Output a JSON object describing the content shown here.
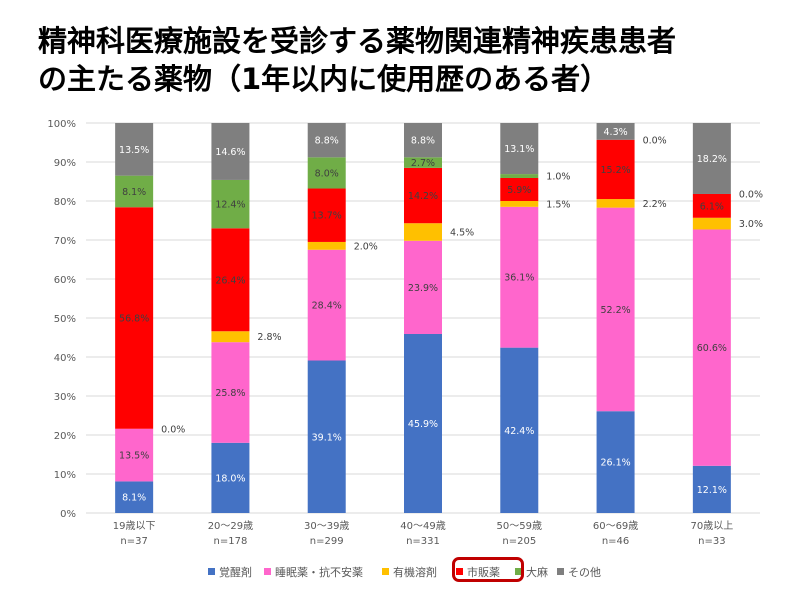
{
  "title": {
    "line1": "精神科医療施設を受診する薬物関連精神疾患患者",
    "line2": "の主たる薬物（1年以内に使用歴のある者）"
  },
  "chart_data": {
    "type": "bar",
    "stacked": true,
    "ylim": [
      0,
      100
    ],
    "yticks": [
      "0%",
      "10%",
      "20%",
      "30%",
      "40%",
      "50%",
      "60%",
      "70%",
      "80%",
      "90%",
      "100%"
    ],
    "categories": [
      {
        "label": "19歳以下",
        "n": "n=37"
      },
      {
        "label": "20～29歳",
        "n": "n=178"
      },
      {
        "label": "30～39歳",
        "n": "n=299"
      },
      {
        "label": "40～49歳",
        "n": "n=331"
      },
      {
        "label": "50～59歳",
        "n": "n=205"
      },
      {
        "label": "60～69歳",
        "n": "n=46"
      },
      {
        "label": "70歳以上",
        "n": "n=33"
      }
    ],
    "series": [
      {
        "name": "覚醒剤",
        "color": "#4472c4",
        "label_color": "#ffffff",
        "values": [
          8.1,
          18.0,
          39.1,
          45.9,
          42.4,
          26.1,
          12.1
        ],
        "labels": [
          "8.1%",
          "18.0%",
          "39.1%",
          "45.9%",
          "42.4%",
          "26.1%",
          "12.1%"
        ]
      },
      {
        "name": "睡眠薬・抗不安薬",
        "color": "#ff66cc",
        "label_color": "#404040",
        "values": [
          13.5,
          25.8,
          28.4,
          23.9,
          36.1,
          52.2,
          60.6
        ],
        "labels": [
          "13.5%",
          "25.8%",
          "28.4%",
          "23.9%",
          "36.1%",
          "52.2%",
          "60.6%"
        ]
      },
      {
        "name": "有機溶剤",
        "color": "#ffc000",
        "label_color": "#404040",
        "values": [
          0.0,
          2.8,
          2.0,
          4.5,
          1.5,
          2.2,
          3.0
        ],
        "labels": [
          "0.0%",
          "2.8%",
          "2.0%",
          "4.5%",
          "1.5%",
          "2.2%",
          "3.0%"
        ]
      },
      {
        "name": "市販薬",
        "color": "#ff0000",
        "label_color": "#404040",
        "values": [
          56.8,
          26.4,
          13.7,
          14.2,
          5.9,
          15.2,
          6.1
        ],
        "labels": [
          "56.8%",
          "26.4%",
          "13.7%",
          "14.2%",
          "5.9%",
          "15.2%",
          "6.1%"
        ]
      },
      {
        "name": "大麻",
        "color": "#70ad47",
        "label_color": "#404040",
        "values": [
          8.1,
          12.4,
          8.0,
          2.7,
          1.0,
          0.0,
          0.0
        ],
        "labels": [
          "8.1%",
          "12.4%",
          "8.0%",
          "2.7%",
          "1.0%",
          "0.0%",
          "0.0%"
        ]
      },
      {
        "name": "その他",
        "color": "#7f7f7f",
        "label_color": "#ffffff",
        "values": [
          13.5,
          14.6,
          8.8,
          8.8,
          13.1,
          4.3,
          18.2
        ],
        "labels": [
          "13.5%",
          "14.6%",
          "8.8%",
          "8.8%",
          "13.1%",
          "4.3%",
          "18.2%"
        ]
      }
    ],
    "outside_labels": [
      {
        "category": 0,
        "series": 2
      },
      {
        "category": 1,
        "series": 2
      },
      {
        "category": 2,
        "series": 2
      },
      {
        "category": 3,
        "series": 2
      },
      {
        "category": 4,
        "series": 2
      },
      {
        "category": 4,
        "series": 4
      },
      {
        "category": 5,
        "series": 2
      },
      {
        "category": 5,
        "series": 4
      },
      {
        "category": 6,
        "series": 2
      },
      {
        "category": 6,
        "series": 4
      }
    ],
    "grid": true,
    "legend_position": "bottom",
    "legend_highlight": "市販薬"
  }
}
